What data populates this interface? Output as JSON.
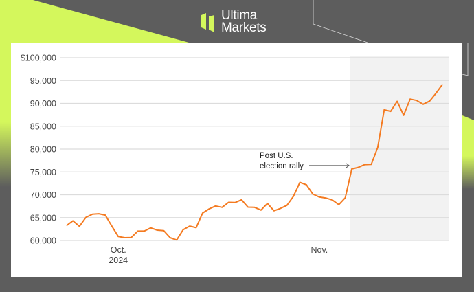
{
  "brand": {
    "line1": "Ultima",
    "line2": "Markets",
    "colors": {
      "accent": "#d4f75c",
      "background": "#5d5d5d"
    }
  },
  "chart_data": {
    "type": "line",
    "title": "",
    "xlabel": "",
    "ylabel": "",
    "ylim": [
      60000,
      100000
    ],
    "grid": true,
    "y_ticks": [
      "$100,000",
      "95,000",
      "90,000",
      "85,000",
      "80,000",
      "75,000",
      "70,000",
      "65,000",
      "60,000"
    ],
    "y_tick_values": [
      100000,
      95000,
      90000,
      85000,
      80000,
      75000,
      70000,
      65000,
      60000
    ],
    "x_ticks": [
      {
        "date": "2024-10-01",
        "label": "Oct.",
        "sublabel": "2024"
      },
      {
        "date": "2024-11-01",
        "label": "Nov.",
        "sublabel": ""
      }
    ],
    "shaded_region": {
      "from": "2024-11-06",
      "to": "2024-11-21",
      "color": "#f2f2f2"
    },
    "annotation": {
      "line1": "Post U.S.",
      "line2": "election rally",
      "date": "2024-11-06",
      "value": 75650
    },
    "series": [
      {
        "color": "#f47a20",
        "points": [
          [
            "2024-09-23",
            63250
          ],
          [
            "2024-09-24",
            64300
          ],
          [
            "2024-09-25",
            63100
          ],
          [
            "2024-09-26",
            65050
          ],
          [
            "2024-09-27",
            65750
          ],
          [
            "2024-09-28",
            65850
          ],
          [
            "2024-09-29",
            65550
          ],
          [
            "2024-09-30",
            63150
          ],
          [
            "2024-10-01",
            60850
          ],
          [
            "2024-10-02",
            60600
          ],
          [
            "2024-10-03",
            60650
          ],
          [
            "2024-10-04",
            62050
          ],
          [
            "2024-10-05",
            62050
          ],
          [
            "2024-10-06",
            62750
          ],
          [
            "2024-10-07",
            62250
          ],
          [
            "2024-10-08",
            62150
          ],
          [
            "2024-10-09",
            60600
          ],
          [
            "2024-10-10",
            60100
          ],
          [
            "2024-10-11",
            62350
          ],
          [
            "2024-10-12",
            63150
          ],
          [
            "2024-10-13",
            62800
          ],
          [
            "2024-10-14",
            66000
          ],
          [
            "2024-10-15",
            66900
          ],
          [
            "2024-10-16",
            67550
          ],
          [
            "2024-10-17",
            67250
          ],
          [
            "2024-10-18",
            68350
          ],
          [
            "2024-10-19",
            68300
          ],
          [
            "2024-10-20",
            68900
          ],
          [
            "2024-10-21",
            67300
          ],
          [
            "2024-10-22",
            67250
          ],
          [
            "2024-10-23",
            66650
          ],
          [
            "2024-10-24",
            68100
          ],
          [
            "2024-10-25",
            66500
          ],
          [
            "2024-10-26",
            67000
          ],
          [
            "2024-10-27",
            67700
          ],
          [
            "2024-10-28",
            69650
          ],
          [
            "2024-10-29",
            72700
          ],
          [
            "2024-10-30",
            72200
          ],
          [
            "2024-10-31",
            70150
          ],
          [
            "2024-11-01",
            69500
          ],
          [
            "2024-11-02",
            69300
          ],
          [
            "2024-11-03",
            68850
          ],
          [
            "2024-11-04",
            67850
          ],
          [
            "2024-11-05",
            69350
          ],
          [
            "2024-11-06",
            75650
          ],
          [
            "2024-11-07",
            76000
          ],
          [
            "2024-11-08",
            76600
          ],
          [
            "2024-11-09",
            76650
          ],
          [
            "2024-11-10",
            80350
          ],
          [
            "2024-11-11",
            88600
          ],
          [
            "2024-11-12",
            88250
          ],
          [
            "2024-11-13",
            90450
          ],
          [
            "2024-11-14",
            87400
          ],
          [
            "2024-11-15",
            90950
          ],
          [
            "2024-11-16",
            90650
          ],
          [
            "2024-11-17",
            89800
          ],
          [
            "2024-11-18",
            90500
          ],
          [
            "2024-11-19",
            92250
          ],
          [
            "2024-11-20",
            94200
          ]
        ]
      }
    ]
  }
}
